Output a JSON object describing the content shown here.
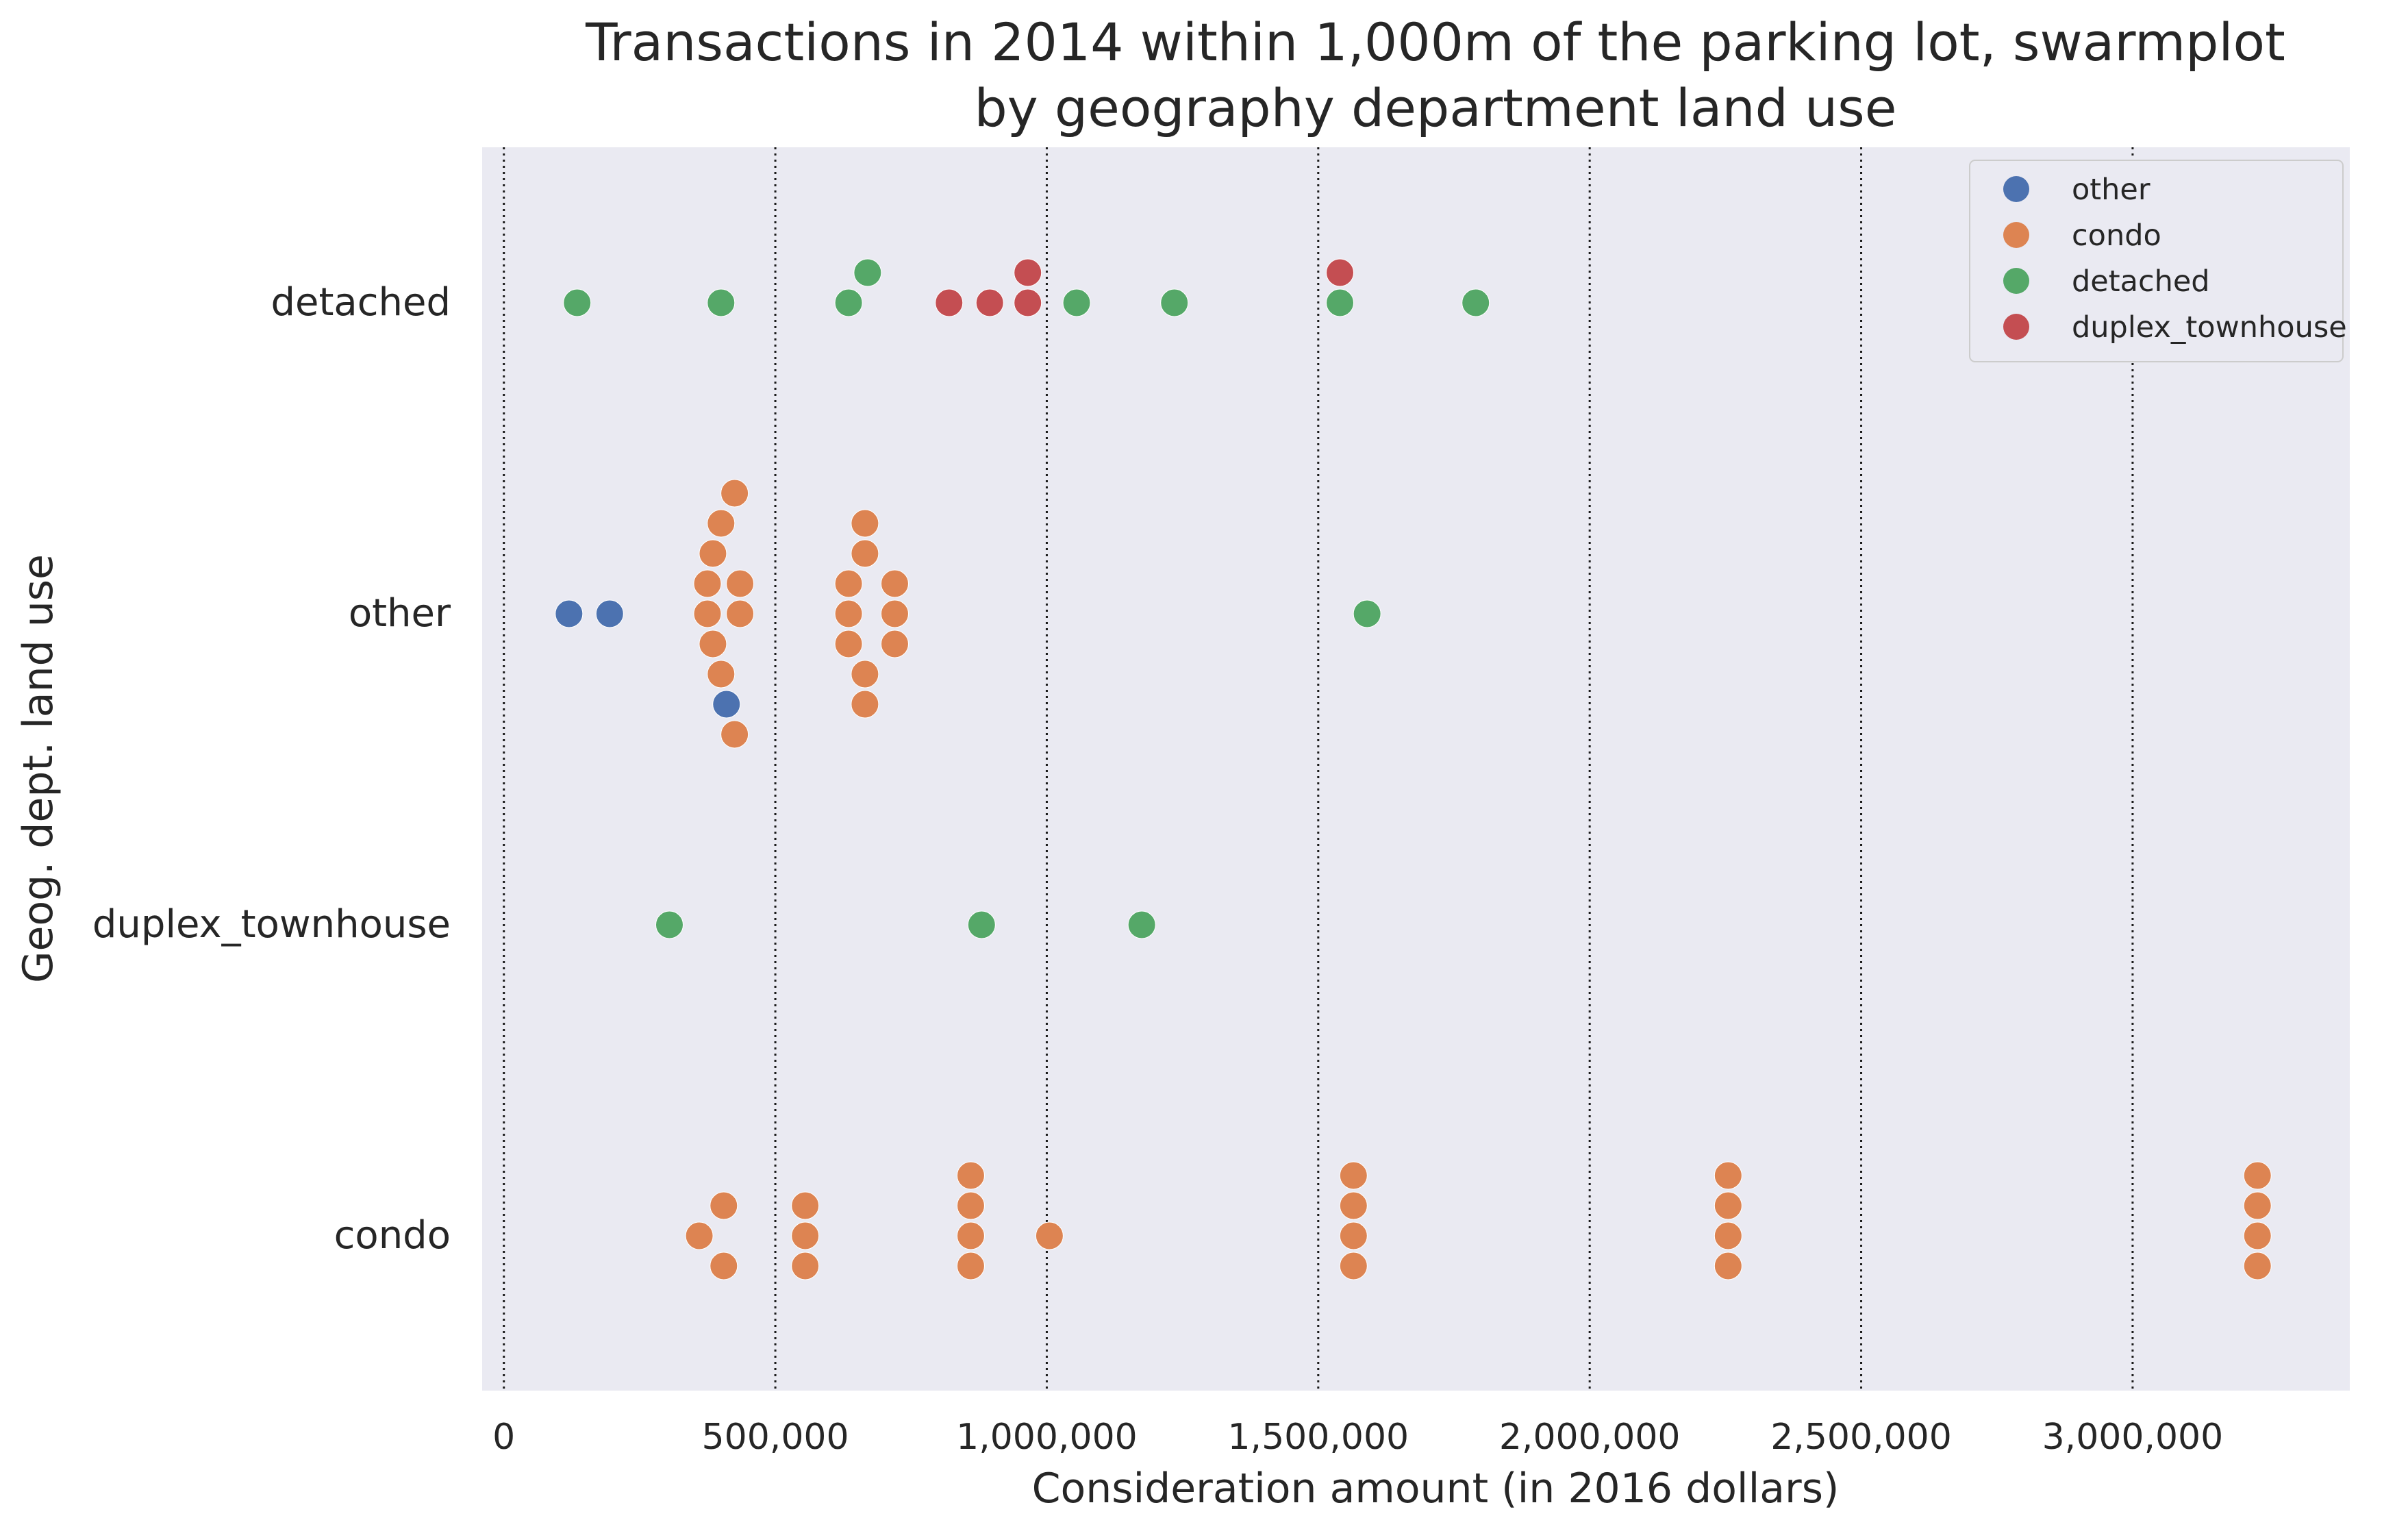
{
  "chart_data": {
    "type": "scatter",
    "subtype": "swarmplot",
    "title": "Transactions in 2014 within 1,000m of the parking lot, swarmplot\nby geography department land use",
    "xlabel": "Consideration amount (in 2016 dollars)",
    "ylabel": "Geog. dept. land use",
    "categories": [
      "detached",
      "other",
      "duplex_townhouse",
      "condo"
    ],
    "xlim": [
      -40000,
      3400000
    ],
    "xticks": [
      0,
      500000,
      1000000,
      1500000,
      2000000,
      2500000,
      3000000
    ],
    "xtick_labels": [
      "0",
      "500,000",
      "1,000,000",
      "1,500,000",
      "2,000,000",
      "2,500,000",
      "3,000,000"
    ],
    "grid": "x-dotted",
    "legend_position": "top-right",
    "colors": {
      "other": "#4c72b0",
      "condo": "#dd8452",
      "detached": "#55a868",
      "duplex_townhouse": "#c44e52"
    },
    "background": "#eaeaf2",
    "series": [
      {
        "name": "other",
        "points": [
          {
            "category": "other",
            "x": 120000
          },
          {
            "category": "other",
            "x": 195000
          },
          {
            "category": "other",
            "x": 410000
          }
        ]
      },
      {
        "name": "condo",
        "points": [
          {
            "category": "other",
            "x": 435000
          },
          {
            "category": "other",
            "x": 400000
          },
          {
            "category": "other",
            "x": 385000
          },
          {
            "category": "other",
            "x": 435000
          },
          {
            "category": "other",
            "x": 375000
          },
          {
            "category": "other",
            "x": 425000
          },
          {
            "category": "other",
            "x": 375000
          },
          {
            "category": "other",
            "x": 425000
          },
          {
            "category": "other",
            "x": 385000
          },
          {
            "category": "other",
            "x": 400000
          },
          {
            "category": "other",
            "x": 665000
          },
          {
            "category": "other",
            "x": 665000
          },
          {
            "category": "other",
            "x": 635000
          },
          {
            "category": "other",
            "x": 720000
          },
          {
            "category": "other",
            "x": 635000
          },
          {
            "category": "other",
            "x": 720000
          },
          {
            "category": "other",
            "x": 635000
          },
          {
            "category": "other",
            "x": 720000
          },
          {
            "category": "other",
            "x": 665000
          },
          {
            "category": "other",
            "x": 665000
          },
          {
            "category": "condo",
            "x": 360000
          },
          {
            "category": "condo",
            "x": 405000
          },
          {
            "category": "condo",
            "x": 405000
          },
          {
            "category": "condo",
            "x": 555000
          },
          {
            "category": "condo",
            "x": 555000
          },
          {
            "category": "condo",
            "x": 555000
          },
          {
            "category": "condo",
            "x": 860000
          },
          {
            "category": "condo",
            "x": 860000
          },
          {
            "category": "condo",
            "x": 860000
          },
          {
            "category": "condo",
            "x": 860000
          },
          {
            "category": "condo",
            "x": 1005000
          },
          {
            "category": "condo",
            "x": 1565000
          },
          {
            "category": "condo",
            "x": 1565000
          },
          {
            "category": "condo",
            "x": 1565000
          },
          {
            "category": "condo",
            "x": 1565000
          },
          {
            "category": "condo",
            "x": 2255000
          },
          {
            "category": "condo",
            "x": 2255000
          },
          {
            "category": "condo",
            "x": 2255000
          },
          {
            "category": "condo",
            "x": 2255000
          },
          {
            "category": "condo",
            "x": 3230000
          },
          {
            "category": "condo",
            "x": 3230000
          },
          {
            "category": "condo",
            "x": 3230000
          },
          {
            "category": "condo",
            "x": 3230000
          }
        ]
      },
      {
        "name": "detached",
        "points": [
          {
            "category": "detached",
            "x": 135000
          },
          {
            "category": "detached",
            "x": 400000
          },
          {
            "category": "detached",
            "x": 635000
          },
          {
            "category": "detached",
            "x": 670000
          },
          {
            "category": "detached",
            "x": 1055000
          },
          {
            "category": "detached",
            "x": 1235000
          },
          {
            "category": "detached",
            "x": 1540000
          },
          {
            "category": "detached",
            "x": 1790000
          },
          {
            "category": "other",
            "x": 1590000
          },
          {
            "category": "duplex_townhouse",
            "x": 305000
          },
          {
            "category": "duplex_townhouse",
            "x": 880000
          },
          {
            "category": "duplex_townhouse",
            "x": 1175000
          }
        ]
      },
      {
        "name": "duplex_townhouse",
        "points": [
          {
            "category": "detached",
            "x": 820000
          },
          {
            "category": "detached",
            "x": 895000
          },
          {
            "category": "detached",
            "x": 965000
          },
          {
            "category": "detached",
            "x": 965000
          },
          {
            "category": "detached",
            "x": 1540000
          }
        ]
      }
    ]
  }
}
